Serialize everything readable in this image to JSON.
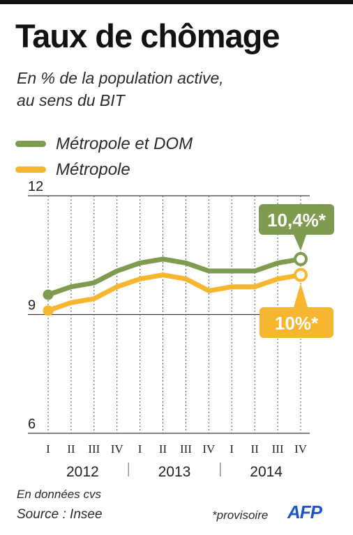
{
  "header": {
    "title": "Taux de chômage",
    "subtitle_line1": "En % de la population active,",
    "subtitle_line2": "au sens du BIT"
  },
  "colors": {
    "green": "#7e9b4f",
    "orange": "#f7b62f",
    "grid_dark": "#3a3a3a",
    "grid_dotted": "#555555"
  },
  "chart_data": {
    "type": "line",
    "x": [
      "2012-I",
      "2012-II",
      "2012-III",
      "2012-IV",
      "2013-I",
      "2013-II",
      "2013-III",
      "2013-IV",
      "2014-I",
      "2014-II",
      "2014-III",
      "2014-IV"
    ],
    "quarter_ticks": [
      "I",
      "II",
      "III",
      "IV",
      "I",
      "II",
      "III",
      "IV",
      "I",
      "II",
      "III",
      "IV"
    ],
    "year_labels": [
      "2012",
      "2013",
      "2014"
    ],
    "y_ticks": [
      "12",
      "9",
      "6"
    ],
    "ylim": [
      6,
      12
    ],
    "grid": true,
    "legend_placement": "top-left",
    "series": [
      {
        "name": "Métropole et DOM",
        "color": "#7e9b4f",
        "values": [
          9.5,
          9.7,
          9.8,
          10.1,
          10.3,
          10.4,
          10.3,
          10.1,
          10.1,
          10.1,
          10.3,
          10.4
        ]
      },
      {
        "name": "Métropole",
        "color": "#f7b62f",
        "values": [
          9.1,
          9.3,
          9.4,
          9.7,
          9.9,
          10.0,
          9.9,
          9.6,
          9.7,
          9.7,
          9.9,
          10.0
        ]
      }
    ],
    "annotations": [
      {
        "series": 0,
        "text": "10,4%*"
      },
      {
        "series": 1,
        "text": "10%*"
      }
    ]
  },
  "footer": {
    "note_cvs": "En données cvs",
    "source": "Source : Insee",
    "provisional": "*provisoire",
    "logo_text": "AFP"
  }
}
